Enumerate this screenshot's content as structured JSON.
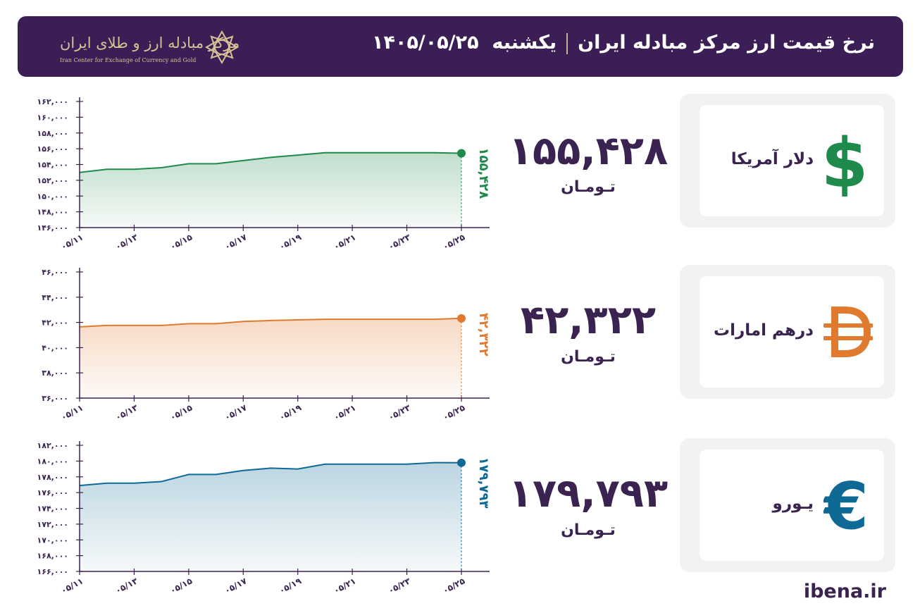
{
  "header": {
    "title": "نرخ قیمت ارز مرکز مبادله ایران",
    "day": "یکشنبه",
    "date": "۱۴۰۵/۰۵/۲۵",
    "logo_text": "مرکز مبادله ارز و طلای ایران",
    "logo_subtitle": "Iran Center for Exchange of Currency and Gold"
  },
  "cards": [
    {
      "name": "دلار آمریکا",
      "price": "۱۵۵,۴۲۸",
      "unit": "تـومـان",
      "icon": "dollar-icon",
      "color": "#1e8a4c"
    },
    {
      "name": "درهم امارات",
      "price": "۴۲,۳۲۲",
      "unit": "تـومـان",
      "icon": "dirham-icon",
      "color": "#e07a2e"
    },
    {
      "name": "یـورو",
      "price": "۱۷۹,۷۹۳",
      "unit": "تـومـان",
      "icon": "euro-icon",
      "color": "#0e6a94"
    }
  ],
  "chart_data": [
    {
      "type": "area",
      "name": "usd",
      "color": "#1e8a4c",
      "x_ticks": [
        "۰۵/۱۱",
        "۰۵/۱۳",
        "۰۵/۱۵",
        "۰۵/۱۷",
        "۰۵/۱۹",
        "۰۵/۲۱",
        "۰۵/۲۳",
        "۰۵/۲۵"
      ],
      "y_ticks": [
        "۱۶۲,۰۰۰",
        "۱۶۰,۰۰۰",
        "۱۵۸,۰۰۰",
        "۱۵۶,۰۰۰",
        "۱۵۴,۰۰۰",
        "۱۵۲,۰۰۰",
        "۱۵۰,۰۰۰",
        "۱۴۸,۰۰۰",
        "۱۴۶,۰۰۰"
      ],
      "ylim": [
        146000,
        162000
      ],
      "x_index": [
        0,
        1,
        2,
        3,
        4,
        5,
        6,
        7,
        8,
        9,
        10,
        11,
        12,
        13,
        14
      ],
      "values": [
        153000,
        153400,
        153400,
        153600,
        154100,
        154100,
        154500,
        154900,
        155200,
        155500,
        155500,
        155500,
        155500,
        155500,
        155428
      ],
      "last_label": "۱۵۵,۴۲۸"
    },
    {
      "type": "area",
      "name": "aed",
      "color": "#e07a2e",
      "x_ticks": [
        "۰۵/۱۱",
        "۰۵/۱۳",
        "۰۵/۱۵",
        "۰۵/۱۷",
        "۰۵/۱۹",
        "۰۵/۲۱",
        "۰۵/۲۳",
        "۰۵/۲۵"
      ],
      "y_ticks": [
        "۴۶,۰۰۰",
        "۴۴,۰۰۰",
        "۴۲,۰۰۰",
        "۴۰,۰۰۰",
        "۳۸,۰۰۰",
        "۳۶,۰۰۰"
      ],
      "ylim": [
        36000,
        46000
      ],
      "x_index": [
        0,
        1,
        2,
        3,
        4,
        5,
        6,
        7,
        8,
        9,
        10,
        11,
        12,
        13,
        14
      ],
      "values": [
        41650,
        41760,
        41760,
        41760,
        41900,
        41900,
        42080,
        42150,
        42200,
        42250,
        42250,
        42250,
        42250,
        42250,
        42322
      ],
      "last_label": "۴۲,۳۲۲"
    },
    {
      "type": "area",
      "name": "eur",
      "color": "#0e6a94",
      "x_ticks": [
        "۰۵/۱۱",
        "۰۵/۱۳",
        "۰۵/۱۵",
        "۰۵/۱۷",
        "۰۵/۱۹",
        "۰۵/۲۱",
        "۰۵/۲۳",
        "۰۵/۲۵"
      ],
      "y_ticks": [
        "۱۸۲,۰۰۰",
        "۱۸۰,۰۰۰",
        "۱۷۸,۰۰۰",
        "۱۷۶,۰۰۰",
        "۱۷۴,۰۰۰",
        "۱۷۲,۰۰۰",
        "۱۷۰,۰۰۰",
        "۱۶۸,۰۰۰",
        "۱۶۶,۰۰۰"
      ],
      "ylim": [
        166000,
        182000
      ],
      "x_index": [
        0,
        1,
        2,
        3,
        4,
        5,
        6,
        7,
        8,
        9,
        10,
        11,
        12,
        13,
        14
      ],
      "values": [
        176900,
        177200,
        177200,
        177400,
        178300,
        178300,
        178800,
        179100,
        179000,
        179600,
        179600,
        179600,
        179600,
        179800,
        179793
      ],
      "last_label": "۱۷۹,۷۹۳"
    }
  ],
  "footer": {
    "site": "ibena.ir"
  }
}
